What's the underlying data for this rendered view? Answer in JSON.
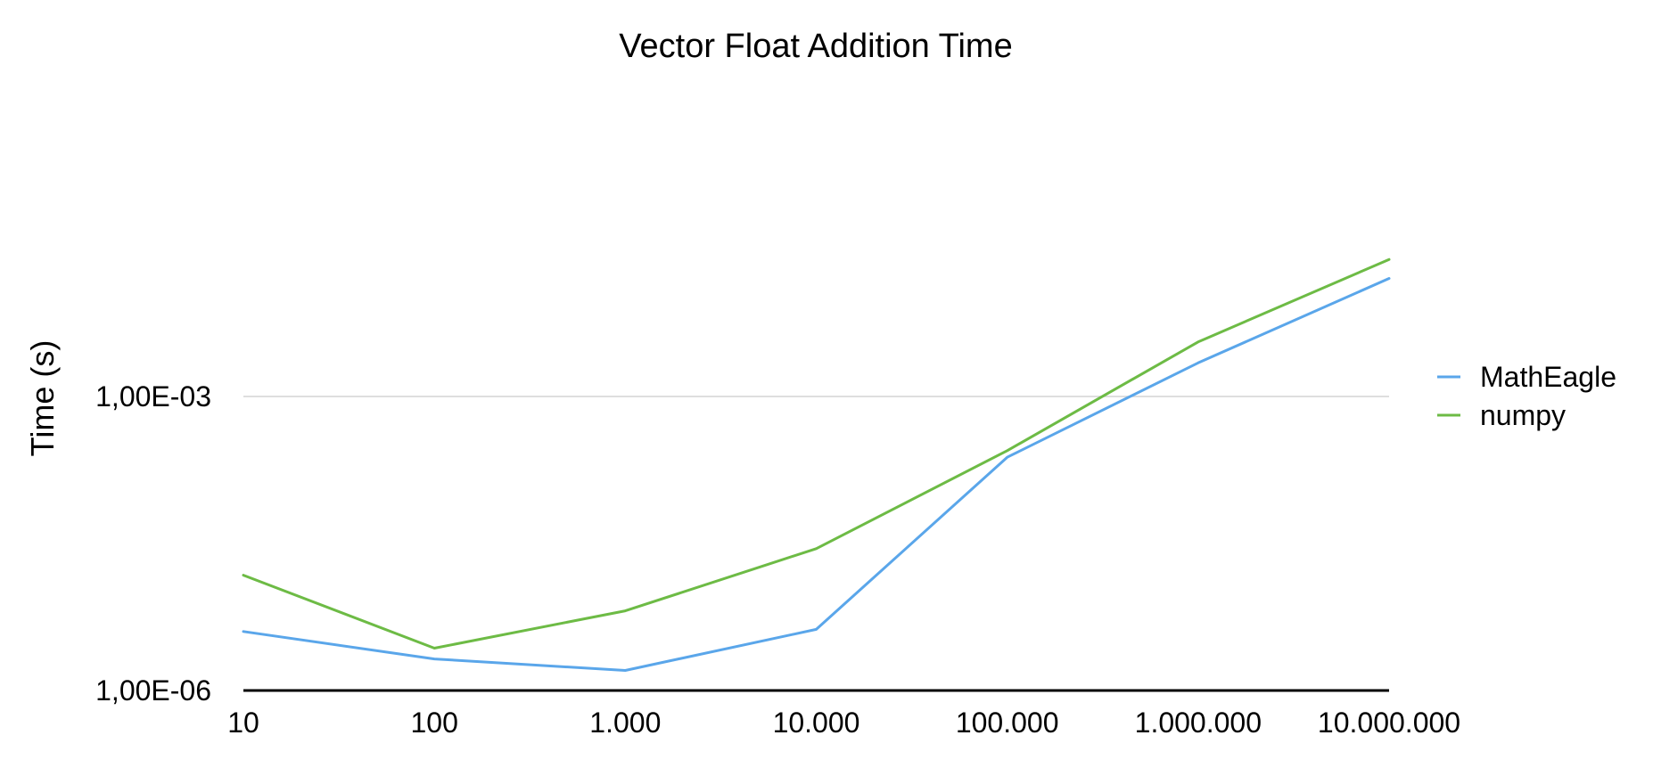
{
  "chart_data": {
    "type": "line",
    "title": "Vector Float Addition Time",
    "xlabel": "",
    "ylabel": "Time (s)",
    "y_scale": "log",
    "ylim": [
      1e-06,
      0.02
    ],
    "grid": true,
    "legend_position": "right",
    "categories": [
      "10",
      "100",
      "1.000",
      "10.000",
      "100.000",
      "1.000.000",
      "10.000.000"
    ],
    "y_tick_labels": [
      "1,00E-06",
      "1,00E-03"
    ],
    "y_ticks": [
      1e-06,
      0.001
    ],
    "series": [
      {
        "name": "MathEagle",
        "color": "#5aa6ea",
        "values": [
          4e-06,
          2.1e-06,
          1.6e-06,
          4.2e-06,
          0.00024,
          0.0022,
          0.016
        ]
      },
      {
        "name": "numpy",
        "color": "#6dbb45",
        "values": [
          1.5e-05,
          2.7e-06,
          6.5e-06,
          2.8e-05,
          0.00028,
          0.0036,
          0.025
        ]
      }
    ]
  }
}
